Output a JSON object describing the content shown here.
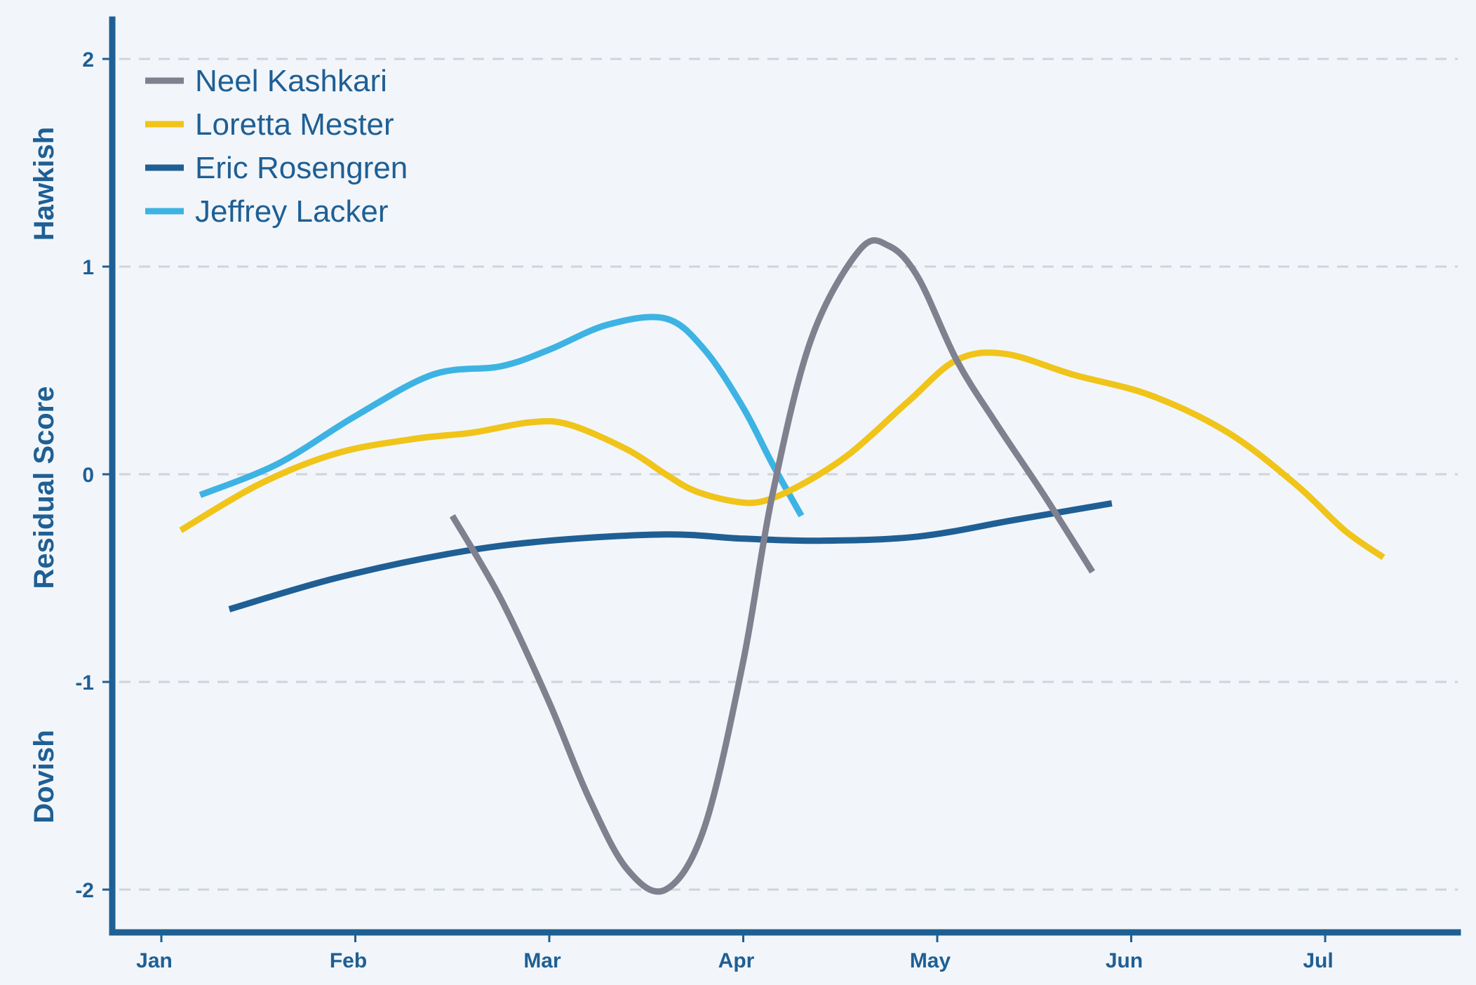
{
  "chart_data": {
    "type": "line",
    "x_labels": [
      "Jan",
      "Feb",
      "Mar",
      "Apr",
      "May",
      "Jun",
      "Jul"
    ],
    "xlim": [
      0,
      6.7
    ],
    "ylim": [
      -2.2,
      2.2
    ],
    "y_ticks": [
      2,
      1,
      0,
      -1,
      -2
    ],
    "ylabel": "Residual Score",
    "y_annotations": {
      "top": "Hawkish",
      "bottom": "Dovish"
    },
    "grid": "horizontal dashed",
    "legend_position": "top-left",
    "series": [
      {
        "name": "Neel Kashkari",
        "color": "#80808f",
        "points": [
          [
            1.5,
            -0.2
          ],
          [
            1.75,
            -0.6
          ],
          [
            2.0,
            -1.1
          ],
          [
            2.2,
            -1.55
          ],
          [
            2.4,
            -1.9
          ],
          [
            2.6,
            -2.0
          ],
          [
            2.8,
            -1.7
          ],
          [
            3.0,
            -0.9
          ],
          [
            3.15,
            -0.1
          ],
          [
            3.35,
            0.65
          ],
          [
            3.6,
            1.08
          ],
          [
            3.75,
            1.1
          ],
          [
            3.9,
            0.95
          ],
          [
            4.1,
            0.55
          ],
          [
            4.3,
            0.25
          ],
          [
            4.55,
            -0.1
          ],
          [
            4.8,
            -0.47
          ]
        ]
      },
      {
        "name": "Loretta Mester",
        "color": "#f0c419",
        "points": [
          [
            0.1,
            -0.27
          ],
          [
            0.5,
            -0.05
          ],
          [
            0.9,
            0.1
          ],
          [
            1.3,
            0.17
          ],
          [
            1.6,
            0.2
          ],
          [
            1.9,
            0.25
          ],
          [
            2.1,
            0.24
          ],
          [
            2.4,
            0.12
          ],
          [
            2.6,
            0.0
          ],
          [
            2.75,
            -0.08
          ],
          [
            2.95,
            -0.13
          ],
          [
            3.1,
            -0.13
          ],
          [
            3.3,
            -0.05
          ],
          [
            3.55,
            0.1
          ],
          [
            3.85,
            0.35
          ],
          [
            4.1,
            0.55
          ],
          [
            4.35,
            0.58
          ],
          [
            4.7,
            0.48
          ],
          [
            5.1,
            0.38
          ],
          [
            5.5,
            0.2
          ],
          [
            5.85,
            -0.05
          ],
          [
            6.1,
            -0.27
          ],
          [
            6.3,
            -0.4
          ]
        ]
      },
      {
        "name": "Eric Rosengren",
        "color": "#1f5f94",
        "points": [
          [
            0.35,
            -0.65
          ],
          [
            0.9,
            -0.5
          ],
          [
            1.5,
            -0.38
          ],
          [
            2.0,
            -0.32
          ],
          [
            2.6,
            -0.29
          ],
          [
            3.0,
            -0.31
          ],
          [
            3.4,
            -0.32
          ],
          [
            3.9,
            -0.3
          ],
          [
            4.4,
            -0.22
          ],
          [
            4.9,
            -0.14
          ]
        ]
      },
      {
        "name": "Jeffrey Lacker",
        "color": "#3db3e3",
        "points": [
          [
            0.2,
            -0.1
          ],
          [
            0.6,
            0.05
          ],
          [
            1.0,
            0.28
          ],
          [
            1.4,
            0.48
          ],
          [
            1.75,
            0.52
          ],
          [
            2.0,
            0.6
          ],
          [
            2.3,
            0.72
          ],
          [
            2.6,
            0.75
          ],
          [
            2.8,
            0.6
          ],
          [
            3.0,
            0.32
          ],
          [
            3.15,
            0.05
          ],
          [
            3.3,
            -0.2
          ]
        ]
      }
    ]
  }
}
